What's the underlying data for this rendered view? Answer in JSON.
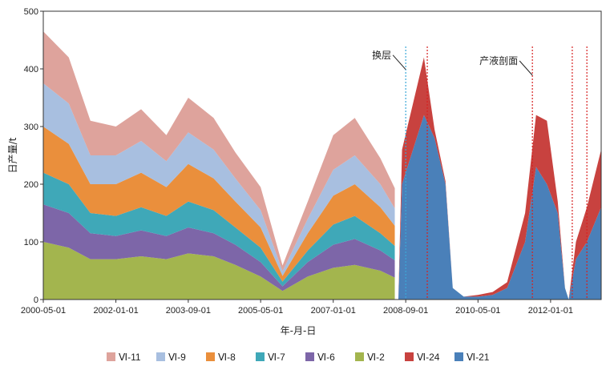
{
  "chart_data": {
    "type": "area",
    "title": "",
    "xlabel": "年-月-日",
    "ylabel": "日产量/t",
    "ylim": [
      0,
      500
    ],
    "yticks": [
      0,
      100,
      200,
      300,
      400,
      500
    ],
    "xlim": [
      "2000-05-01",
      "2013-03-01"
    ],
    "xticks": [
      "2000-05-01",
      "2002-01-01",
      "2003-09-01",
      "2005-05-01",
      "2007-01-01",
      "2008-09-01",
      "2010-05-01",
      "2012-01-01"
    ],
    "legend_position": "bottom",
    "series": [
      {
        "name": "Ⅵ-2",
        "color": "#a3b54e",
        "points": [
          [
            "2000-05-01",
            100
          ],
          [
            "2000-12-01",
            90
          ],
          [
            "2001-06-01",
            70
          ],
          [
            "2002-01-01",
            70
          ],
          [
            "2002-08-01",
            75
          ],
          [
            "2003-03-01",
            70
          ],
          [
            "2003-09-01",
            80
          ],
          [
            "2004-04-01",
            75
          ],
          [
            "2004-10-01",
            60
          ],
          [
            "2005-05-01",
            40
          ],
          [
            "2005-11-01",
            15
          ],
          [
            "2006-06-01",
            40
          ],
          [
            "2007-01-01",
            55
          ],
          [
            "2007-07-01",
            60
          ],
          [
            "2008-02-01",
            50
          ],
          [
            "2008-06-01",
            38
          ]
        ]
      },
      {
        "name": "Ⅵ-6",
        "color": "#7d66a8",
        "points": [
          [
            "2000-05-01",
            65
          ],
          [
            "2000-12-01",
            60
          ],
          [
            "2001-06-01",
            45
          ],
          [
            "2002-01-01",
            40
          ],
          [
            "2002-08-01",
            45
          ],
          [
            "2003-03-01",
            40
          ],
          [
            "2003-09-01",
            45
          ],
          [
            "2004-04-01",
            40
          ],
          [
            "2004-10-01",
            35
          ],
          [
            "2005-05-01",
            25
          ],
          [
            "2005-11-01",
            8
          ],
          [
            "2006-06-01",
            25
          ],
          [
            "2007-01-01",
            40
          ],
          [
            "2007-07-01",
            45
          ],
          [
            "2008-02-01",
            35
          ],
          [
            "2008-06-01",
            30
          ]
        ]
      },
      {
        "name": "Ⅵ-7",
        "color": "#3fa8b8",
        "points": [
          [
            "2000-05-01",
            55
          ],
          [
            "2000-12-01",
            50
          ],
          [
            "2001-06-01",
            35
          ],
          [
            "2002-01-01",
            35
          ],
          [
            "2002-08-01",
            40
          ],
          [
            "2003-03-01",
            35
          ],
          [
            "2003-09-01",
            45
          ],
          [
            "2004-04-01",
            40
          ],
          [
            "2004-10-01",
            30
          ],
          [
            "2005-05-01",
            25
          ],
          [
            "2005-11-01",
            8
          ],
          [
            "2006-06-01",
            20
          ],
          [
            "2007-01-01",
            35
          ],
          [
            "2007-07-01",
            40
          ],
          [
            "2008-02-01",
            30
          ],
          [
            "2008-06-01",
            25
          ]
        ]
      },
      {
        "name": "Ⅵ-8",
        "color": "#ea8f3c",
        "points": [
          [
            "2000-05-01",
            80
          ],
          [
            "2000-12-01",
            70
          ],
          [
            "2001-06-01",
            50
          ],
          [
            "2002-01-01",
            55
          ],
          [
            "2002-08-01",
            60
          ],
          [
            "2003-03-01",
            50
          ],
          [
            "2003-09-01",
            65
          ],
          [
            "2004-04-01",
            55
          ],
          [
            "2004-10-01",
            45
          ],
          [
            "2005-05-01",
            35
          ],
          [
            "2005-11-01",
            10
          ],
          [
            "2006-06-01",
            30
          ],
          [
            "2007-01-01",
            50
          ],
          [
            "2007-07-01",
            55
          ],
          [
            "2008-02-01",
            45
          ],
          [
            "2008-06-01",
            35
          ]
        ]
      },
      {
        "name": "Ⅵ-9",
        "color": "#a8bfe0",
        "points": [
          [
            "2000-05-01",
            75
          ],
          [
            "2000-12-01",
            70
          ],
          [
            "2001-06-01",
            50
          ],
          [
            "2002-01-01",
            50
          ],
          [
            "2002-08-01",
            55
          ],
          [
            "2003-03-01",
            45
          ],
          [
            "2003-09-01",
            55
          ],
          [
            "2004-04-01",
            50
          ],
          [
            "2004-10-01",
            40
          ],
          [
            "2005-05-01",
            30
          ],
          [
            "2005-11-01",
            8
          ],
          [
            "2006-06-01",
            25
          ],
          [
            "2007-01-01",
            45
          ],
          [
            "2007-07-01",
            50
          ],
          [
            "2008-02-01",
            40
          ],
          [
            "2008-06-01",
            30
          ]
        ]
      },
      {
        "name": "Ⅵ-11",
        "color": "#dea39c",
        "points": [
          [
            "2000-05-01",
            90
          ],
          [
            "2000-12-01",
            80
          ],
          [
            "2001-06-01",
            60
          ],
          [
            "2002-01-01",
            50
          ],
          [
            "2002-08-01",
            55
          ],
          [
            "2003-03-01",
            45
          ],
          [
            "2003-09-01",
            60
          ],
          [
            "2004-04-01",
            55
          ],
          [
            "2004-10-01",
            45
          ],
          [
            "2005-05-01",
            40
          ],
          [
            "2005-11-01",
            10
          ],
          [
            "2006-06-01",
            30
          ],
          [
            "2007-01-01",
            60
          ],
          [
            "2007-07-01",
            65
          ],
          [
            "2008-02-01",
            45
          ],
          [
            "2008-06-01",
            35
          ]
        ]
      },
      {
        "name": "Ⅵ-21",
        "color": "#4a80b9",
        "points": [
          [
            "2008-07-01",
            0
          ],
          [
            "2008-08-01",
            200
          ],
          [
            "2008-11-01",
            260
          ],
          [
            "2009-02-01",
            320
          ],
          [
            "2009-05-01",
            280
          ],
          [
            "2009-08-01",
            200
          ],
          [
            "2009-10-01",
            20
          ],
          [
            "2010-01-01",
            5
          ],
          [
            "2010-05-01",
            5
          ],
          [
            "2010-09-01",
            8
          ],
          [
            "2011-01-01",
            20
          ],
          [
            "2011-06-01",
            100
          ],
          [
            "2011-09-01",
            230
          ],
          [
            "2011-12-01",
            200
          ],
          [
            "2012-03-01",
            150
          ],
          [
            "2012-05-01",
            20
          ],
          [
            "2012-06-01",
            0
          ],
          [
            "2012-08-01",
            70
          ],
          [
            "2012-11-01",
            100
          ],
          [
            "2013-03-01",
            160
          ]
        ]
      },
      {
        "name": "Ⅵ-24",
        "color": "#c8423f",
        "points": [
          [
            "2008-07-01",
            0
          ],
          [
            "2008-08-01",
            60
          ],
          [
            "2008-11-01",
            80
          ],
          [
            "2009-02-01",
            100
          ],
          [
            "2009-05-01",
            15
          ],
          [
            "2009-08-01",
            5
          ],
          [
            "2009-10-01",
            0
          ],
          [
            "2010-01-01",
            0
          ],
          [
            "2010-05-01",
            3
          ],
          [
            "2010-09-01",
            5
          ],
          [
            "2011-01-01",
            10
          ],
          [
            "2011-06-01",
            50
          ],
          [
            "2011-09-01",
            90
          ],
          [
            "2011-12-01",
            110
          ],
          [
            "2012-03-01",
            20
          ],
          [
            "2012-05-01",
            0
          ],
          [
            "2012-06-01",
            0
          ],
          [
            "2012-08-01",
            30
          ],
          [
            "2012-11-01",
            60
          ],
          [
            "2013-03-01",
            100
          ]
        ]
      }
    ],
    "vertical_lines": [
      {
        "date": "2008-09-01",
        "color": "#3aa8d8"
      },
      {
        "date": "2009-03-01",
        "color": "#d62020"
      },
      {
        "date": "2011-08-01",
        "color": "#d62020"
      },
      {
        "date": "2012-07-01",
        "color": "#d62020"
      },
      {
        "date": "2012-11-01",
        "color": "#d62020"
      }
    ],
    "annotations": [
      {
        "text": "换层",
        "date": "2008-09-01",
        "y": 410
      },
      {
        "text": "产液剖面",
        "date": "2011-08-01",
        "y": 400
      }
    ],
    "legend_order": [
      "Ⅵ-11",
      "Ⅵ-9",
      "Ⅵ-8",
      "Ⅵ-7",
      "Ⅵ-6",
      "Ⅵ-2",
      "Ⅵ-24",
      "Ⅵ-21"
    ]
  }
}
